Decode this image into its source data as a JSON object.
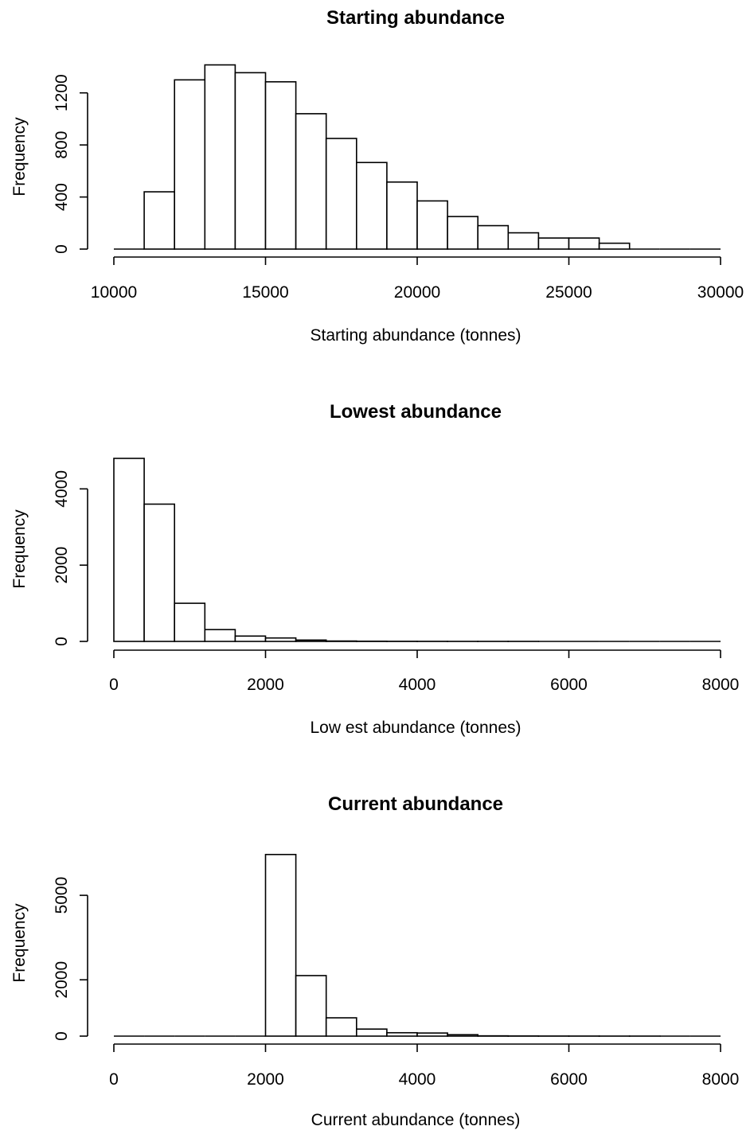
{
  "chart_data": [
    {
      "type": "bar",
      "title": "Starting abundance",
      "xlabel": "Starting abundance  (tonnes)",
      "ylabel": "Frequency",
      "xlim": [
        10000,
        30000
      ],
      "ylim": [
        0,
        1400
      ],
      "x_ticks": [
        10000,
        15000,
        20000,
        25000,
        30000
      ],
      "y_ticks": [
        0,
        400,
        800,
        1200
      ],
      "grid": false,
      "bins": [
        {
          "start": 10000,
          "end": 11000,
          "count": 0
        },
        {
          "start": 11000,
          "end": 12000,
          "count": 440
        },
        {
          "start": 12000,
          "end": 13000,
          "count": 1300
        },
        {
          "start": 13000,
          "end": 14000,
          "count": 1415
        },
        {
          "start": 14000,
          "end": 15000,
          "count": 1355
        },
        {
          "start": 15000,
          "end": 16000,
          "count": 1285
        },
        {
          "start": 16000,
          "end": 17000,
          "count": 1040
        },
        {
          "start": 17000,
          "end": 18000,
          "count": 850
        },
        {
          "start": 18000,
          "end": 19000,
          "count": 665
        },
        {
          "start": 19000,
          "end": 20000,
          "count": 515
        },
        {
          "start": 20000,
          "end": 21000,
          "count": 370
        },
        {
          "start": 21000,
          "end": 22000,
          "count": 250
        },
        {
          "start": 22000,
          "end": 23000,
          "count": 180
        },
        {
          "start": 23000,
          "end": 24000,
          "count": 125
        },
        {
          "start": 24000,
          "end": 25000,
          "count": 85
        },
        {
          "start": 25000,
          "end": 26000,
          "count": 85
        },
        {
          "start": 26000,
          "end": 27000,
          "count": 45
        },
        {
          "start": 27000,
          "end": 28000,
          "count": 0
        },
        {
          "start": 28000,
          "end": 29000,
          "count": 0
        },
        {
          "start": 29000,
          "end": 30000,
          "count": 0
        }
      ]
    },
    {
      "type": "bar",
      "title": "Lowest abundance",
      "xlabel": "Low est abundance  (tonnes)",
      "ylabel": "Frequency",
      "xlim": [
        0,
        8000
      ],
      "ylim": [
        0,
        4800
      ],
      "x_ticks": [
        0,
        2000,
        4000,
        6000,
        8000
      ],
      "y_ticks": [
        0,
        2000,
        4000
      ],
      "grid": false,
      "bins": [
        {
          "start": 0,
          "end": 400,
          "count": 4800
        },
        {
          "start": 400,
          "end": 800,
          "count": 3600
        },
        {
          "start": 800,
          "end": 1200,
          "count": 1000
        },
        {
          "start": 1200,
          "end": 1600,
          "count": 310
        },
        {
          "start": 1600,
          "end": 2000,
          "count": 140
        },
        {
          "start": 2000,
          "end": 2400,
          "count": 90
        },
        {
          "start": 2400,
          "end": 2800,
          "count": 35
        },
        {
          "start": 2800,
          "end": 3200,
          "count": 10
        },
        {
          "start": 3200,
          "end": 3600,
          "count": 5
        },
        {
          "start": 3600,
          "end": 4000,
          "count": 3
        },
        {
          "start": 4000,
          "end": 4400,
          "count": 2
        },
        {
          "start": 4400,
          "end": 4800,
          "count": 1
        },
        {
          "start": 4800,
          "end": 5200,
          "count": 1
        },
        {
          "start": 5200,
          "end": 5600,
          "count": 1
        },
        {
          "start": 5600,
          "end": 6000,
          "count": 0
        },
        {
          "start": 6000,
          "end": 6400,
          "count": 0
        },
        {
          "start": 6400,
          "end": 6800,
          "count": 0
        },
        {
          "start": 6800,
          "end": 7200,
          "count": 0
        },
        {
          "start": 7200,
          "end": 7600,
          "count": 0
        },
        {
          "start": 7600,
          "end": 8000,
          "count": 0
        }
      ]
    },
    {
      "type": "bar",
      "title": "Current abundance",
      "xlabel": "Current abundance  (tonnes)",
      "ylabel": "Frequency",
      "xlim": [
        0,
        8000
      ],
      "ylim": [
        0,
        6500
      ],
      "x_ticks": [
        0,
        2000,
        4000,
        6000,
        8000
      ],
      "y_ticks": [
        0,
        2000,
        5000
      ],
      "grid": false,
      "bins": [
        {
          "start": 0,
          "end": 400,
          "count": 0
        },
        {
          "start": 400,
          "end": 800,
          "count": 0
        },
        {
          "start": 800,
          "end": 1200,
          "count": 0
        },
        {
          "start": 1200,
          "end": 1600,
          "count": 0
        },
        {
          "start": 1600,
          "end": 2000,
          "count": 0
        },
        {
          "start": 2000,
          "end": 2400,
          "count": 6450
        },
        {
          "start": 2400,
          "end": 2800,
          "count": 2150
        },
        {
          "start": 2800,
          "end": 3200,
          "count": 650
        },
        {
          "start": 3200,
          "end": 3600,
          "count": 250
        },
        {
          "start": 3600,
          "end": 4000,
          "count": 120
        },
        {
          "start": 4000,
          "end": 4400,
          "count": 110
        },
        {
          "start": 4400,
          "end": 4800,
          "count": 50
        },
        {
          "start": 4800,
          "end": 5200,
          "count": 10
        },
        {
          "start": 5200,
          "end": 5600,
          "count": 5
        },
        {
          "start": 5600,
          "end": 6000,
          "count": 3
        },
        {
          "start": 6000,
          "end": 6400,
          "count": 2
        },
        {
          "start": 6400,
          "end": 6800,
          "count": 1
        },
        {
          "start": 6800,
          "end": 7200,
          "count": 1
        },
        {
          "start": 7200,
          "end": 7600,
          "count": 0
        },
        {
          "start": 7600,
          "end": 8000,
          "count": 0
        }
      ]
    }
  ]
}
